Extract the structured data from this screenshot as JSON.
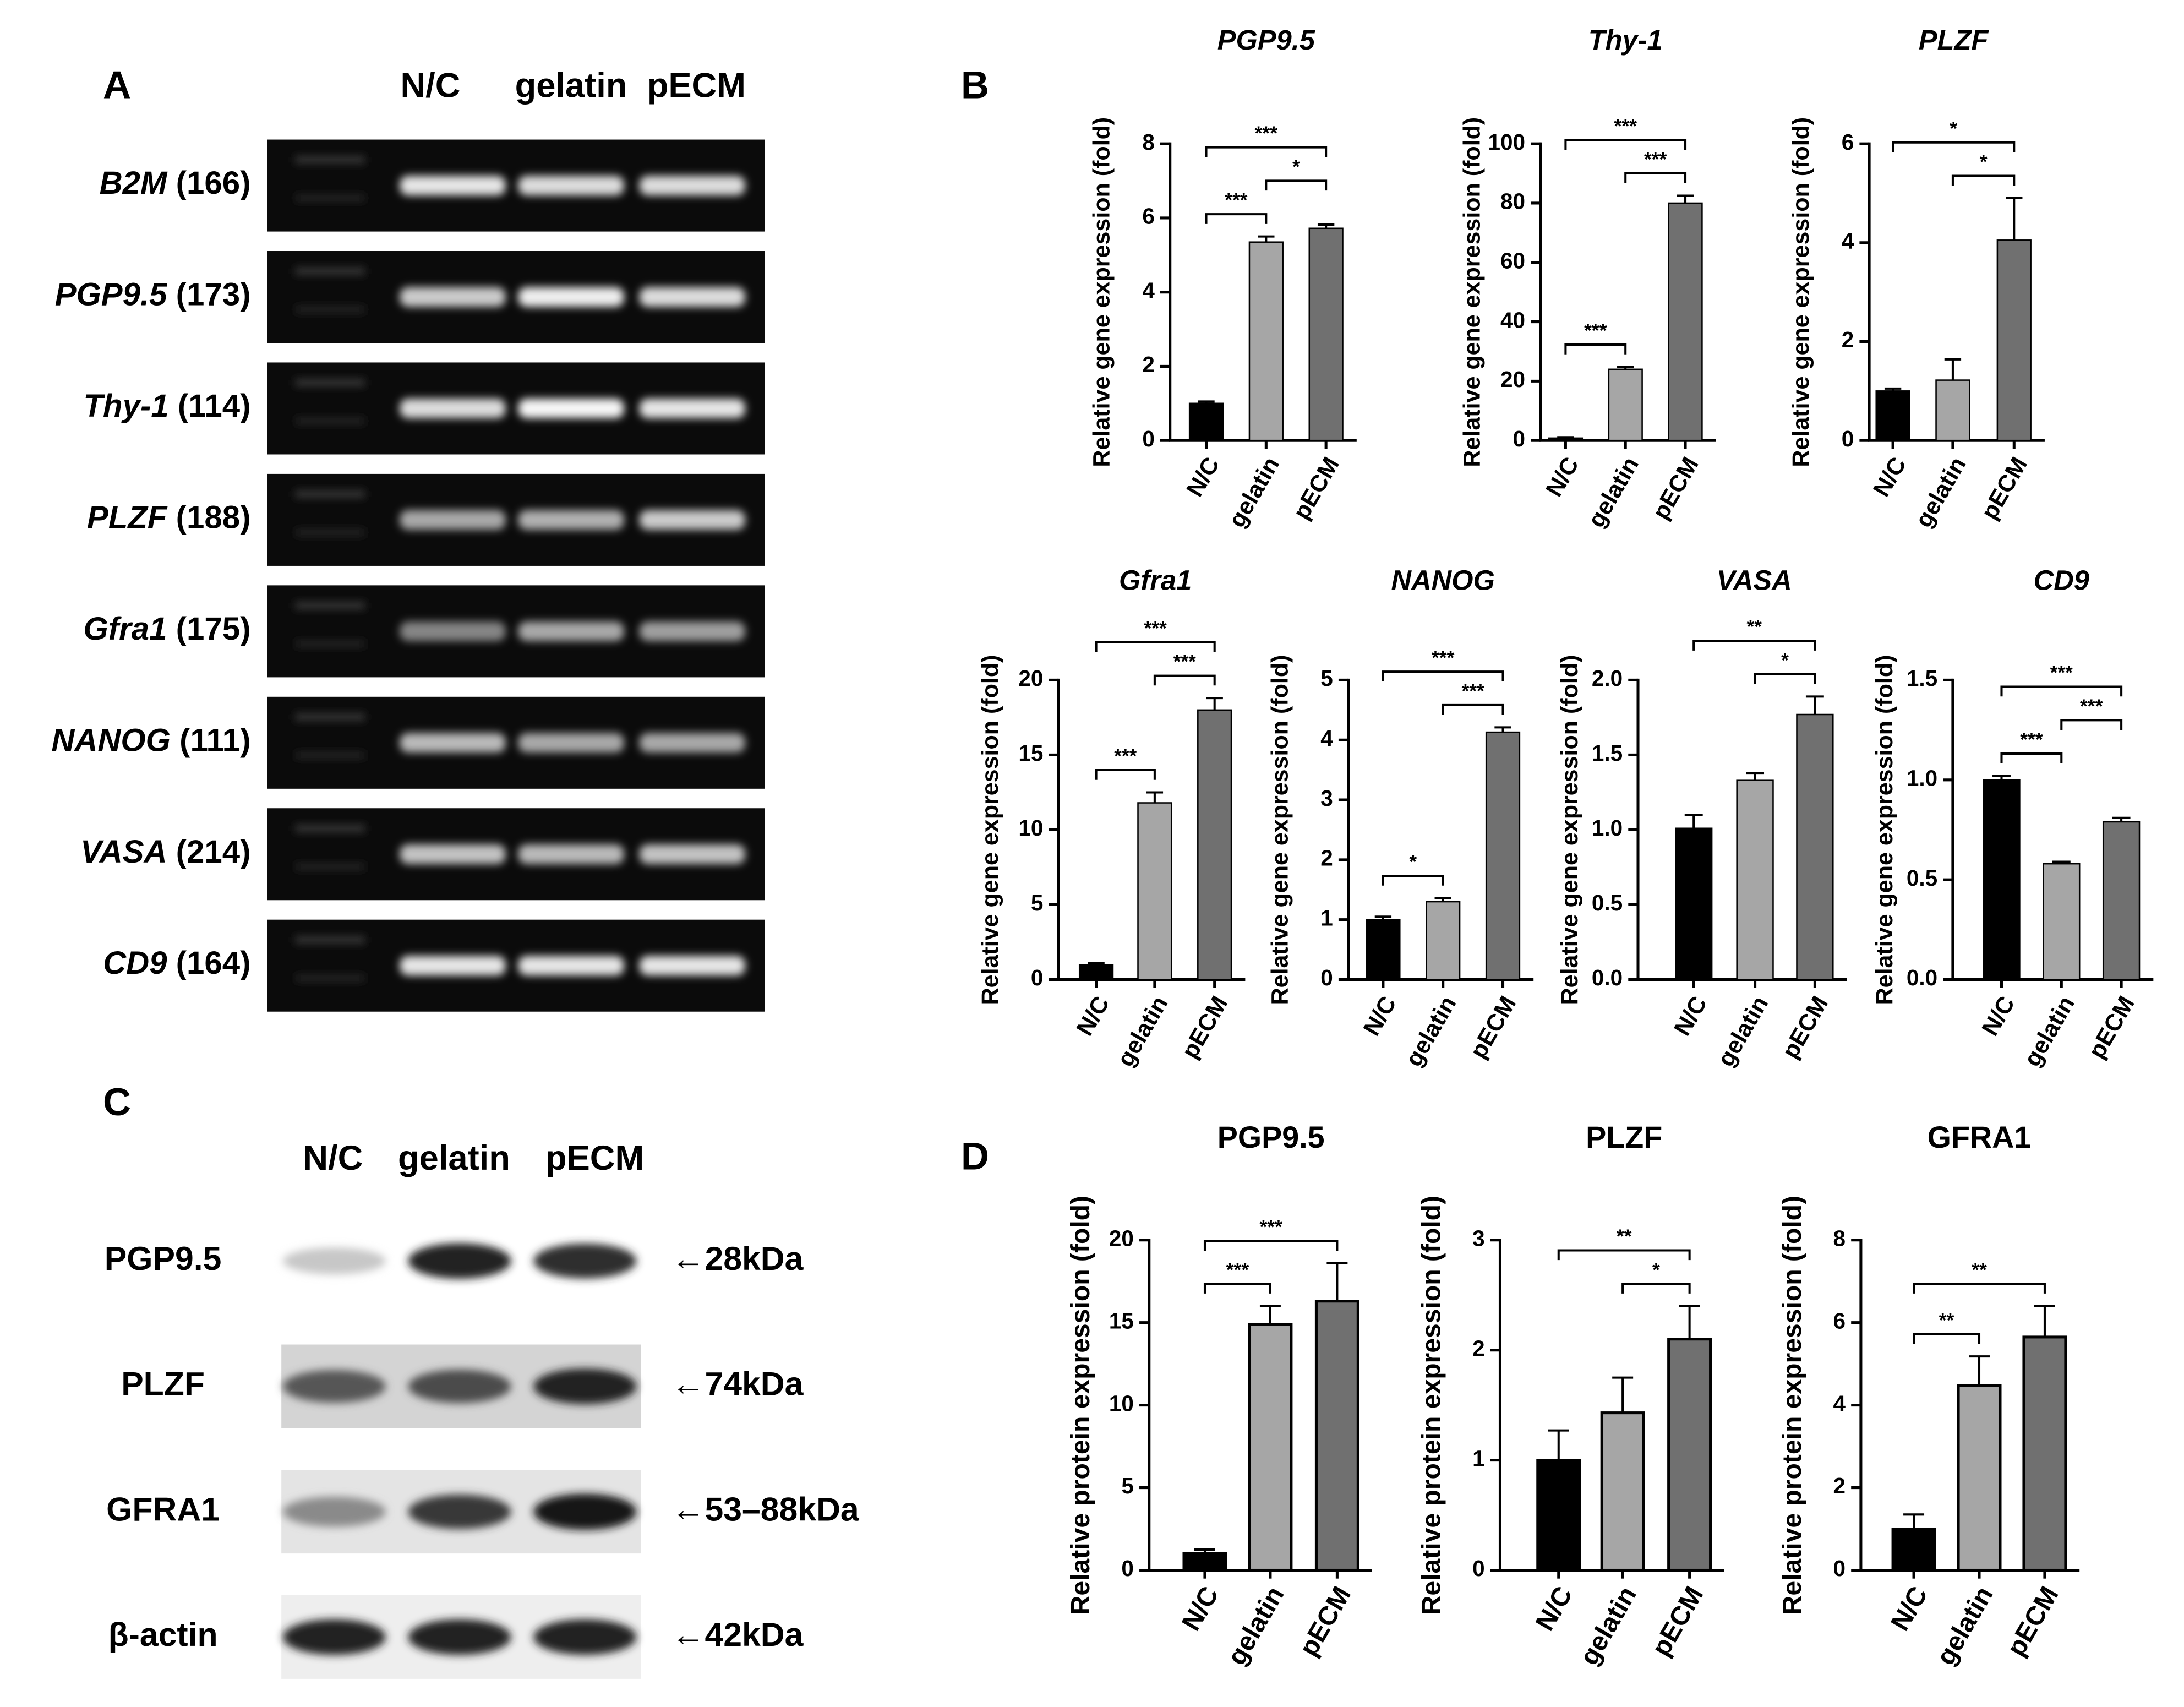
{
  "panel_a": {
    "label": "A",
    "lanes": [
      "N/C",
      "gelatin",
      "pECM"
    ],
    "genes": [
      {
        "gene": "B2M",
        "size": "(166)"
      },
      {
        "gene": "PGP9.5",
        "size": "(173)"
      },
      {
        "gene": "Thy-1",
        "size": "(114)"
      },
      {
        "gene": "PLZF",
        "size": "(188)"
      },
      {
        "gene": "Gfra1",
        "size": "(175)"
      },
      {
        "gene": "NANOG",
        "size": "(111)"
      },
      {
        "gene": "VASA",
        "size": "(214)"
      },
      {
        "gene": "CD9",
        "size": "(164)"
      }
    ]
  },
  "panel_b": {
    "label": "B"
  },
  "panel_c": {
    "label": "C",
    "lanes": [
      "N/C",
      "gelatin",
      "pECM"
    ],
    "rows": [
      {
        "protein": "PGP9.5",
        "size": "←28kDa"
      },
      {
        "protein": "PLZF",
        "size": "←74kDa"
      },
      {
        "protein": "GFRA1",
        "size": "←53–88kDa"
      },
      {
        "protein": "β-actin",
        "size": "←42kDa"
      }
    ]
  },
  "panel_d": {
    "label": "D"
  },
  "chart_data": [
    {
      "type": "bar",
      "title": "PGP9.5",
      "ylabel": "Relative gene expression (fold)",
      "categories": [
        "N/C",
        "gelatin",
        "pECM"
      ],
      "values": [
        1.0,
        5.35,
        5.72
      ],
      "errors": [
        0.05,
        0.15,
        0.1
      ],
      "colors": [
        "#000000",
        "#a6a6a6",
        "#707070"
      ],
      "ylim": [
        0,
        8
      ],
      "yticks": [
        0,
        2,
        4,
        6,
        8
      ],
      "brackets": [
        {
          "between": [
            "N/C",
            "gelatin"
          ],
          "label": "***"
        },
        {
          "between": [
            "gelatin",
            "pECM"
          ],
          "label": "*"
        },
        {
          "between": [
            "N/C",
            "pECM"
          ],
          "label": "***"
        }
      ]
    },
    {
      "type": "bar",
      "title": "Thy-1",
      "ylabel": "Relative gene expression (fold)",
      "categories": [
        "N/C",
        "gelatin",
        "pECM"
      ],
      "values": [
        0.8,
        24,
        80
      ],
      "errors": [
        0.3,
        0.8,
        2.5
      ],
      "colors": [
        "#000000",
        "#a6a6a6",
        "#707070"
      ],
      "ylim": [
        0,
        100
      ],
      "yticks": [
        0,
        20,
        40,
        60,
        80,
        100
      ],
      "brackets": [
        {
          "between": [
            "N/C",
            "gelatin"
          ],
          "label": "***"
        },
        {
          "between": [
            "gelatin",
            "pECM"
          ],
          "label": "***"
        },
        {
          "between": [
            "N/C",
            "pECM"
          ],
          "label": "***"
        }
      ]
    },
    {
      "type": "bar",
      "title": "PLZF",
      "ylabel": "Relative gene expression (fold)",
      "categories": [
        "N/C",
        "gelatin",
        "pECM"
      ],
      "values": [
        1.0,
        1.22,
        4.05
      ],
      "errors": [
        0.05,
        0.42,
        0.85
      ],
      "colors": [
        "#000000",
        "#a6a6a6",
        "#707070"
      ],
      "ylim": [
        0,
        6
      ],
      "yticks": [
        0,
        2,
        4,
        6
      ],
      "brackets": [
        {
          "between": [
            "gelatin",
            "pECM"
          ],
          "label": "*"
        },
        {
          "between": [
            "N/C",
            "pECM"
          ],
          "label": "*"
        }
      ]
    },
    {
      "type": "bar",
      "title": "Gfra1",
      "ylabel": "Relative gene expression (fold)",
      "categories": [
        "N/C",
        "gelatin",
        "pECM"
      ],
      "values": [
        1.0,
        11.8,
        18.0
      ],
      "errors": [
        0.1,
        0.7,
        0.8
      ],
      "colors": [
        "#000000",
        "#a6a6a6",
        "#707070"
      ],
      "ylim": [
        0,
        20
      ],
      "yticks": [
        0,
        5,
        10,
        15,
        20
      ],
      "brackets": [
        {
          "between": [
            "N/C",
            "gelatin"
          ],
          "label": "***"
        },
        {
          "between": [
            "gelatin",
            "pECM"
          ],
          "label": "***"
        },
        {
          "between": [
            "N/C",
            "pECM"
          ],
          "label": "***"
        }
      ]
    },
    {
      "type": "bar",
      "title": "NANOG",
      "ylabel": "Relative gene expression (fold)",
      "categories": [
        "N/C",
        "gelatin",
        "pECM"
      ],
      "values": [
        1.0,
        1.3,
        4.13
      ],
      "errors": [
        0.05,
        0.06,
        0.08
      ],
      "colors": [
        "#000000",
        "#a6a6a6",
        "#707070"
      ],
      "ylim": [
        0,
        5
      ],
      "yticks": [
        0,
        1,
        2,
        3,
        4,
        5
      ],
      "brackets": [
        {
          "between": [
            "N/C",
            "gelatin"
          ],
          "label": "*"
        },
        {
          "between": [
            "gelatin",
            "pECM"
          ],
          "label": "***"
        },
        {
          "between": [
            "N/C",
            "pECM"
          ],
          "label": "***"
        }
      ]
    },
    {
      "type": "bar",
      "title": "VASA",
      "ylabel": "Relative gene expression (fold)",
      "categories": [
        "N/C",
        "gelatin",
        "pECM"
      ],
      "values": [
        1.01,
        1.33,
        1.77
      ],
      "errors": [
        0.09,
        0.05,
        0.12
      ],
      "colors": [
        "#000000",
        "#a6a6a6",
        "#707070"
      ],
      "ylim": [
        0,
        2
      ],
      "yticks": [
        {
          "value": 0,
          "label": "0.0"
        },
        0.5,
        {
          "value": 1,
          "label": "1.0"
        },
        1.5,
        {
          "value": 2,
          "label": "2.0"
        }
      ],
      "brackets": [
        {
          "between": [
            "gelatin",
            "pECM"
          ],
          "label": "*"
        },
        {
          "between": [
            "N/C",
            "pECM"
          ],
          "label": "**"
        }
      ]
    },
    {
      "type": "bar",
      "title": "CD9",
      "ylabel": "Relative gene expression (fold)",
      "categories": [
        "N/C",
        "gelatin",
        "pECM"
      ],
      "values": [
        1.0,
        0.58,
        0.79
      ],
      "errors": [
        0.02,
        0.01,
        0.02
      ],
      "colors": [
        "#000000",
        "#a6a6a6",
        "#707070"
      ],
      "ylim": [
        0,
        1.5
      ],
      "yticks": [
        {
          "value": 0,
          "label": "0.0"
        },
        0.5,
        {
          "value": 1,
          "label": "1.0"
        },
        1.5
      ],
      "brackets": [
        {
          "between": [
            "N/C",
            "gelatin"
          ],
          "label": "***"
        },
        {
          "between": [
            "gelatin",
            "pECM"
          ],
          "label": "***"
        },
        {
          "between": [
            "N/C",
            "pECM"
          ],
          "label": "***"
        }
      ]
    },
    {
      "type": "bar",
      "title": "PGP9.5",
      "ylabel": "Relative protein expression (fold)",
      "categories": [
        "N/C",
        "gelatin",
        "pECM"
      ],
      "values": [
        1.0,
        14.9,
        16.3
      ],
      "errors": [
        0.25,
        1.1,
        2.3
      ],
      "colors": [
        "#000000",
        "#a6a6a6",
        "#707070"
      ],
      "ylim": [
        0,
        20
      ],
      "yticks": [
        0,
        5,
        10,
        15,
        20
      ],
      "brackets": [
        {
          "between": [
            "N/C",
            "gelatin"
          ],
          "label": "***"
        },
        {
          "between": [
            "N/C",
            "pECM"
          ],
          "label": "***"
        }
      ]
    },
    {
      "type": "bar",
      "title": "PLZF",
      "ylabel": "Relative protein expression (fold)",
      "categories": [
        "N/C",
        "gelatin",
        "pECM"
      ],
      "values": [
        1.0,
        1.43,
        2.1
      ],
      "errors": [
        0.27,
        0.32,
        0.3
      ],
      "colors": [
        "#000000",
        "#a6a6a6",
        "#707070"
      ],
      "ylim": [
        0,
        3
      ],
      "yticks": [
        0,
        1,
        2,
        3
      ],
      "brackets": [
        {
          "between": [
            "gelatin",
            "pECM"
          ],
          "label": "*"
        },
        {
          "between": [
            "N/C",
            "pECM"
          ],
          "label": "**"
        }
      ]
    },
    {
      "type": "bar",
      "title": "GFRA1",
      "ylabel": "Relative protein expression (fold)",
      "categories": [
        "N/C",
        "gelatin",
        "pECM"
      ],
      "values": [
        1.0,
        4.48,
        5.65
      ],
      "errors": [
        0.35,
        0.7,
        0.75
      ],
      "colors": [
        "#000000",
        "#a6a6a6",
        "#707070"
      ],
      "ylim": [
        0,
        8
      ],
      "yticks": [
        0,
        2,
        4,
        6,
        8
      ],
      "brackets": [
        {
          "between": [
            "N/C",
            "gelatin"
          ],
          "label": "**"
        },
        {
          "between": [
            "N/C",
            "pECM"
          ],
          "label": "**"
        }
      ]
    }
  ]
}
